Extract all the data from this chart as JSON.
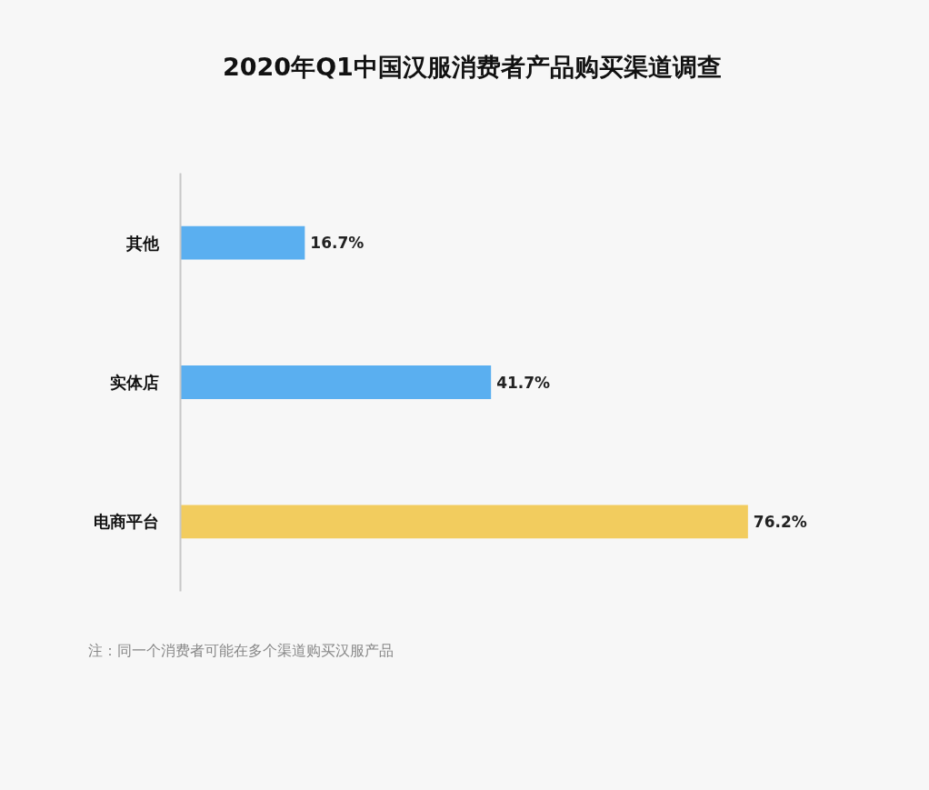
{
  "chart_data": {
    "type": "bar",
    "orientation": "horizontal",
    "title": "2020年Q1中国汉服消费者产品购买渠道调查",
    "categories": [
      "其他",
      "实体店",
      "电商平台"
    ],
    "values": [
      16.7,
      41.7,
      76.2
    ],
    "colors": [
      "#5aaff0",
      "#5aaff0",
      "#f2cc5e"
    ],
    "value_labels": [
      "16.7%",
      "41.7%",
      "76.2%"
    ],
    "annotations": [
      "注：同一个消费者可能在多个渠道购买汉服产品"
    ]
  }
}
